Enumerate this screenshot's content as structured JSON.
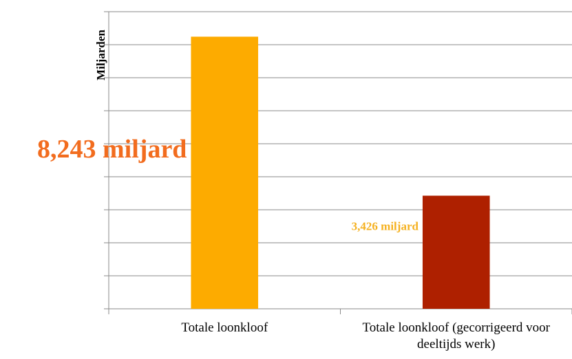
{
  "chart_data": {
    "type": "bar",
    "ylabel": "Miljarden",
    "categories": [
      "Totale loonkloof",
      "Totale loonkloof (gecorrigeerd voor deeltijds werk)"
    ],
    "values": [
      8.243,
      3.426
    ],
    "value_labels": [
      "8,243 miljard",
      "3,426 miljard"
    ],
    "colors": [
      "#fdab00",
      "#ae2000"
    ],
    "ylim": [
      0,
      9
    ],
    "yticks": [
      0,
      1,
      2,
      3,
      4,
      5,
      6,
      7,
      8,
      9
    ],
    "grid": true
  }
}
